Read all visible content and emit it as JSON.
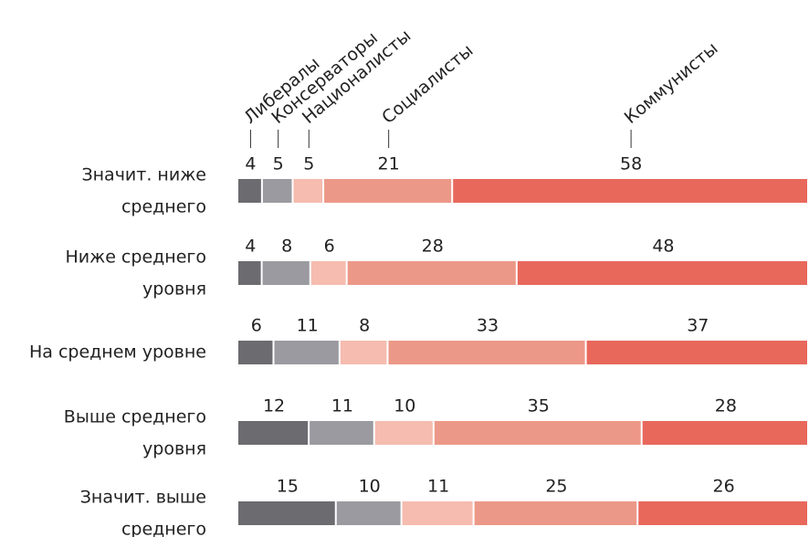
{
  "chart_data": {
    "type": "stacked-bar-100",
    "categories": [
      [
        "Значит. ниже",
        "среднего"
      ],
      [
        "Ниже среднего",
        "уровня"
      ],
      [
        "На среднем уровне"
      ],
      [
        "Выше среднего",
        "уровня"
      ],
      [
        "Значит. выше",
        "среднего"
      ]
    ],
    "series": [
      {
        "name": "Либералы",
        "color": "#6b6b70",
        "values": [
          4,
          4,
          6,
          12,
          15
        ]
      },
      {
        "name": "Консерваторы",
        "color": "#9a9aa0",
        "values": [
          5,
          8,
          11,
          11,
          10
        ]
      },
      {
        "name": "Националисты",
        "color": "#f5bcaf",
        "values": [
          5,
          6,
          8,
          10,
          11
        ]
      },
      {
        "name": "Социалисты",
        "color": "#ec9888",
        "values": [
          21,
          28,
          33,
          35,
          25
        ]
      },
      {
        "name": "Коммунисты",
        "color": "#e8685c",
        "values": [
          58,
          48,
          37,
          28,
          26
        ]
      }
    ]
  }
}
